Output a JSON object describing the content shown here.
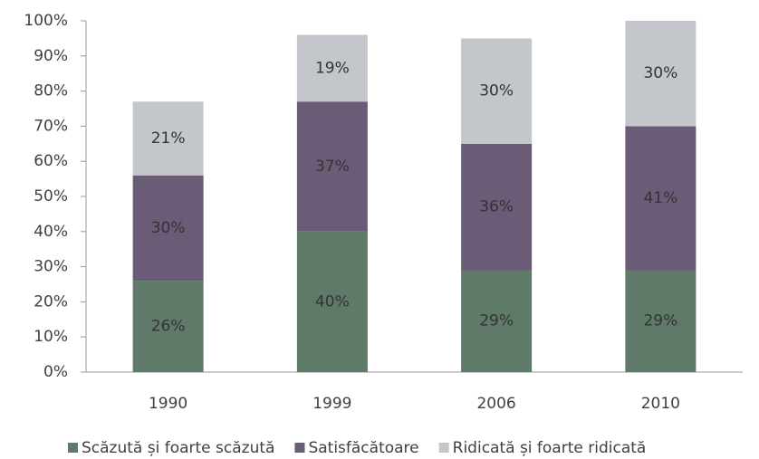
{
  "chart_data": {
    "type": "stacked_bar",
    "categories": [
      "1990",
      "1999",
      "2006",
      "2010"
    ],
    "series": [
      {
        "name": "Scăzută și foarte scăzută",
        "color": "#5f7a68",
        "values": [
          26,
          40,
          29,
          29
        ],
        "value_labels": [
          "26%",
          "40%",
          "29%",
          "29%"
        ]
      },
      {
        "name": "Satisfăcătoare",
        "color": "#6a5b76",
        "values": [
          30,
          37,
          36,
          41
        ],
        "value_labels": [
          "30%",
          "37%",
          "36%",
          "41%"
        ]
      },
      {
        "name": "Ridicată și foarte ridicată",
        "color": "#c3c6ca",
        "values": [
          21,
          19,
          30,
          30
        ],
        "value_labels": [
          "21%",
          "19%",
          "30%",
          "30%"
        ]
      }
    ],
    "ylim": [
      0,
      100
    ],
    "yticks": [
      {
        "value": 0,
        "label": "0%"
      },
      {
        "value": 10,
        "label": "10%"
      },
      {
        "value": 20,
        "label": "20%"
      },
      {
        "value": 30,
        "label": "30%"
      },
      {
        "value": 40,
        "label": "40%"
      },
      {
        "value": 50,
        "label": "50%"
      },
      {
        "value": 60,
        "label": "60%"
      },
      {
        "value": 70,
        "label": "70%"
      },
      {
        "value": 80,
        "label": "80%"
      },
      {
        "value": 90,
        "label": "90%"
      },
      {
        "value": 100,
        "label": "100%"
      }
    ],
    "grid": false,
    "legend": "bottom"
  }
}
